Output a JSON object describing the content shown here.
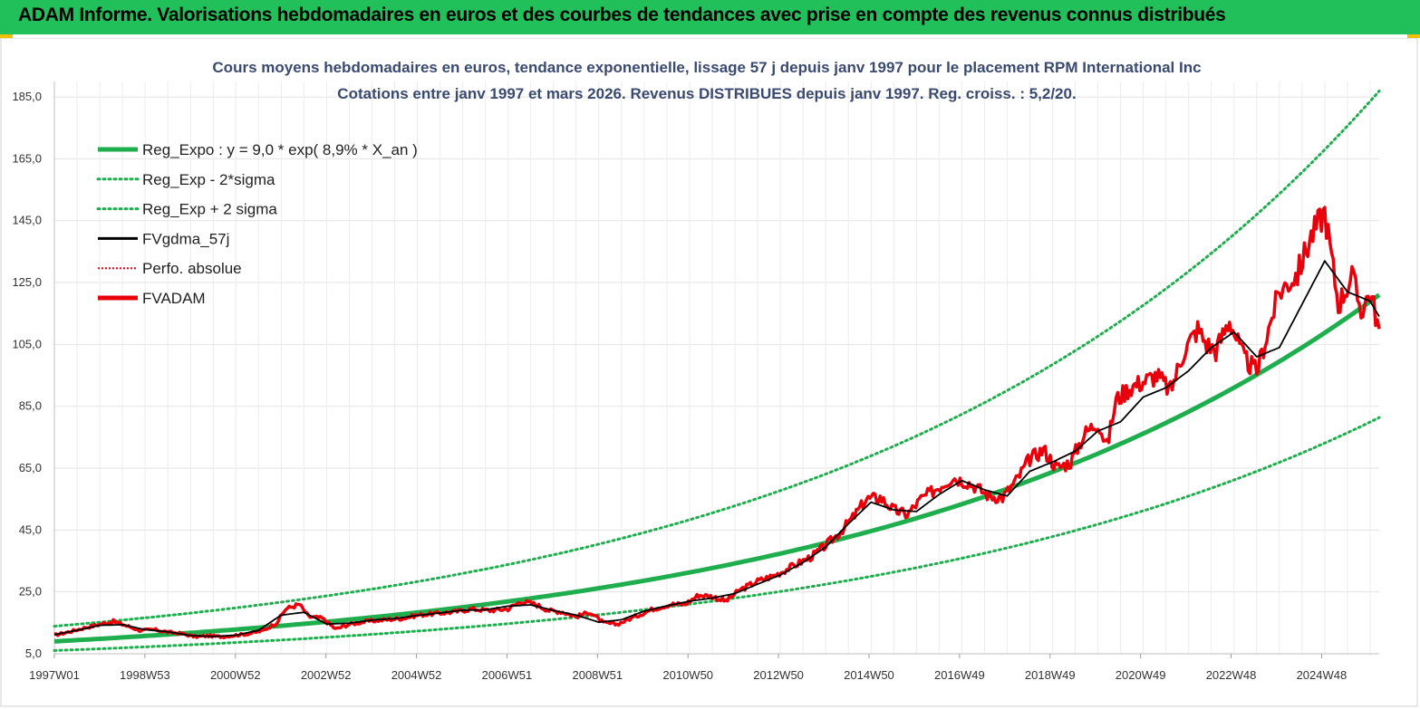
{
  "banner": {
    "title": "ADAM Informe. Valorisations hebdomadaires en euros et des courbes de tendances avec prise en compte des revenus connus distribués"
  },
  "colors": {
    "banner_bg": "#22c05a",
    "accent": "#f0c000",
    "reg_expo": "#1fae4e",
    "fvgdma": "#000000",
    "fvadam": "#e8000a",
    "perfo": "#e8000a",
    "title_text": "#3a4a70",
    "grid": "#e3e3e3"
  },
  "chart_data": {
    "type": "line",
    "title": "Cours moyens hebdomadaires en euros, tendance exponentielle, lissage 57 j depuis janv 1997 pour le placement RPM International Inc",
    "subtitle": "Cotations entre janv 1997 et mars 2026. Revenus DISTRIBUES depuis janv 1997. Reg. croiss. : 5,2/20.",
    "xlabel": "",
    "ylabel": "",
    "ylim": [
      5,
      190
    ],
    "y_ticks": [
      "5,0",
      "25,0",
      "45,0",
      "65,0",
      "85,0",
      "105,0",
      "125,0",
      "145,0",
      "165,0",
      "185,0"
    ],
    "x_tick_labels": [
      "1997W01",
      "1998W53",
      "2000W52",
      "2002W52",
      "2004W52",
      "2006W51",
      "2008W51",
      "2010W50",
      "2012W50",
      "2014W50",
      "2016W49",
      "2018W49",
      "2020W49",
      "2022W48",
      "2024W48"
    ],
    "xlim_years": [
      1997.0,
      2026.2
    ],
    "grid": true,
    "legend_position": "top-left",
    "series": [
      {
        "name": "Reg_Expo : y = 9,0 * exp( 8,9% *  X_an )",
        "style": "solid-thick",
        "color": "#1fae4e",
        "model": {
          "type": "exp",
          "a": 9.0,
          "rate": 0.089
        }
      },
      {
        "name": "Reg_Exp - 2*sigma",
        "style": "dotted",
        "color": "#1fae4e",
        "model": {
          "type": "exp",
          "a": 6.05,
          "rate": 0.089
        }
      },
      {
        "name": "Reg_Exp + 2 sigma",
        "style": "dotted",
        "color": "#1fae4e",
        "model": {
          "type": "exp",
          "a": 13.9,
          "rate": 0.089
        }
      },
      {
        "name": "FVgdma_57j",
        "style": "solid",
        "color": "#000000"
      },
      {
        "name": "Perfo. absolue",
        "style": "dotted-legend-only",
        "color": "#e8000a"
      },
      {
        "name": "FVADAM",
        "style": "solid-thick",
        "color": "#e8000a"
      }
    ],
    "fvadam_points": {
      "x": [
        1997.0,
        1997.3,
        1997.7,
        1998.0,
        1998.3,
        1998.6,
        1998.9,
        1999.2,
        1999.5,
        1999.8,
        2000.1,
        2000.4,
        2000.7,
        2001.0,
        2001.3,
        2001.6,
        2001.9,
        2002.1,
        2002.4,
        2002.6,
        2002.9,
        2003.2,
        2003.5,
        2003.9,
        2004.3,
        2004.7,
        2005.0,
        2005.4,
        2005.8,
        2006.2,
        2006.6,
        2007.0,
        2007.3,
        2007.6,
        2007.9,
        2008.2,
        2008.5,
        2008.8,
        2009.1,
        2009.4,
        2009.8,
        2010.2,
        2010.6,
        2010.9,
        2011.2,
        2011.5,
        2011.8,
        2012.1,
        2012.5,
        2012.9,
        2013.3,
        2013.7,
        2014.0,
        2014.3,
        2014.6,
        2014.9,
        2015.2,
        2015.5,
        2015.8,
        2016.1,
        2016.4,
        2016.8,
        2017.2,
        2017.6,
        2017.9,
        2018.2,
        2018.5,
        2018.8,
        2019.1,
        2019.4,
        2019.7,
        2020.0,
        2020.2,
        2020.4,
        2020.7,
        2021.0,
        2021.3,
        2021.6,
        2021.9,
        2022.2,
        2022.4,
        2022.6,
        2022.9,
        2023.2,
        2023.5,
        2023.8,
        2024.0,
        2024.2,
        2024.4,
        2024.7,
        2025.0,
        2025.3,
        2025.6,
        2025.8,
        2026.0,
        2026.2
      ],
      "y": [
        11.0,
        12.0,
        13.5,
        14.5,
        15.5,
        14.0,
        12.5,
        12.8,
        12.0,
        11.5,
        10.5,
        10.8,
        10.5,
        11.0,
        11.5,
        12.5,
        15.0,
        19.5,
        21.0,
        17.0,
        16.5,
        13.0,
        14.5,
        15.5,
        16.0,
        16.5,
        17.5,
        18.0,
        18.5,
        19.5,
        19.0,
        19.5,
        22.0,
        21.0,
        19.0,
        18.5,
        17.0,
        18.5,
        15.0,
        14.5,
        17.0,
        19.5,
        21.0,
        21.0,
        24.0,
        23.5,
        22.0,
        25.5,
        28.5,
        30.5,
        33.5,
        36.5,
        40.0,
        44.0,
        49.0,
        55.0,
        55.5,
        51.5,
        50.0,
        55.0,
        58.0,
        62.0,
        60.0,
        56.0,
        55.5,
        61.0,
        68.0,
        71.0,
        65.0,
        67.0,
        76.0,
        80.0,
        72.0,
        87.0,
        91.0,
        93.0,
        95.0,
        90.0,
        103.0,
        110.0,
        105.0,
        103.0,
        113.0,
        101.0,
        96.0,
        112.0,
        122.0,
        125.0,
        128.0,
        140.0,
        148.0,
        118.0,
        127.0,
        116.0,
        122.0,
        110.0
      ]
    },
    "fvgdma_points": {
      "x": [
        1997.0,
        1997.5,
        1998.0,
        1998.5,
        1999.0,
        1999.5,
        2000.0,
        2000.5,
        2001.0,
        2001.5,
        2002.0,
        2002.5,
        2003.0,
        2003.5,
        2004.0,
        2004.5,
        2005.0,
        2005.5,
        2006.0,
        2006.5,
        2007.0,
        2007.5,
        2008.0,
        2008.5,
        2009.0,
        2009.5,
        2010.0,
        2010.5,
        2011.0,
        2011.5,
        2012.0,
        2012.5,
        2013.0,
        2013.5,
        2014.0,
        2014.5,
        2015.0,
        2015.5,
        2016.0,
        2016.5,
        2017.0,
        2017.5,
        2018.0,
        2018.5,
        2019.0,
        2019.5,
        2020.0,
        2020.5,
        2021.0,
        2021.5,
        2022.0,
        2022.5,
        2023.0,
        2023.5,
        2024.0,
        2024.5,
        2025.0,
        2025.5,
        2026.0,
        2026.2
      ],
      "y": [
        11.2,
        12.6,
        14.2,
        14.4,
        12.8,
        12.1,
        10.9,
        10.6,
        11.0,
        12.6,
        17.5,
        18.4,
        14.6,
        14.9,
        15.9,
        16.4,
        17.4,
        18.2,
        19.1,
        19.2,
        20.4,
        20.8,
        19.0,
        17.5,
        15.2,
        16.0,
        18.8,
        20.5,
        22.0,
        23.0,
        24.5,
        27.5,
        30.5,
        34.5,
        39.5,
        47.0,
        54.0,
        51.5,
        51.0,
        56.5,
        61.0,
        58.0,
        56.0,
        64.0,
        67.0,
        70.5,
        77.0,
        80.0,
        88.0,
        91.0,
        96.5,
        104.0,
        109.0,
        101.0,
        104.0,
        118.0,
        132.0,
        122.0,
        119.0,
        114.0
      ]
    }
  }
}
